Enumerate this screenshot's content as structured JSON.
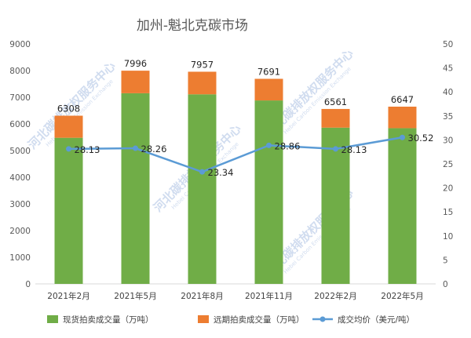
{
  "chart_data": {
    "type": "bar",
    "title": "加州-魁北克碳市场",
    "categories": [
      "2021年2月",
      "2021年5月",
      "2021年8月",
      "2021年11月",
      "2022年2月",
      "2022年5月"
    ],
    "series": [
      {
        "name": "现货拍卖成交量（万吨）",
        "kind": "bar-stacked",
        "axis": "left",
        "color": "#70ad47",
        "values": [
          5480,
          7150,
          7110,
          6880,
          5860,
          5840
        ]
      },
      {
        "name": "远期拍卖成交量（万吨）",
        "kind": "bar-stacked",
        "axis": "left",
        "color": "#ed7d31",
        "values": [
          828,
          846,
          847,
          811,
          701,
          807
        ]
      },
      {
        "name": "成交均价（美元/吨）",
        "kind": "line",
        "axis": "right",
        "color": "#5b9bd5",
        "values": [
          28.13,
          28.26,
          23.34,
          28.86,
          28.13,
          30.52
        ]
      }
    ],
    "totals": [
      6308,
      7996,
      7957,
      7691,
      6561,
      6647
    ],
    "y_left": {
      "min": 0,
      "max": 9000,
      "step": 1000
    },
    "y_right": {
      "min": 0,
      "max": 50,
      "step": 5
    },
    "legend_position": "bottom",
    "gridlines": false
  },
  "watermark": {
    "text": "河北碳排放权服务中心",
    "subtext": "Hebei Carbon Emission Exchange"
  }
}
